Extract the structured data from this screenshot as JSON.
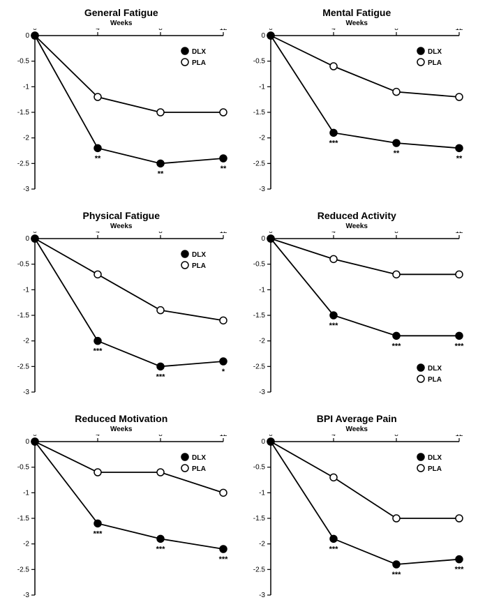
{
  "global": {
    "xaxis_title": "Weeks",
    "x_values": [
      0,
      4,
      8,
      12
    ],
    "ylim": [
      -3,
      0
    ],
    "ytick_step": 0.5,
    "series_labels": {
      "dlx": "DLX",
      "pla": "PLA"
    },
    "colors": {
      "dlx_fill": "#000000",
      "pla_fill": "#ffffff",
      "line": "#000000",
      "axis": "#000000",
      "text": "#000000",
      "background": "#ffffff"
    },
    "title_fontsize": 14,
    "subtitle_fontsize": 10,
    "axis_fontsize": 10,
    "legend_fontsize": 10,
    "marker_radius": 5,
    "line_width": 1.8
  },
  "panels": [
    {
      "title": "General Fatigue",
      "dlx": [
        0,
        -2.2,
        -2.5,
        -2.4
      ],
      "pla": [
        0,
        -1.2,
        -1.5,
        -1.5
      ],
      "sig": [
        "",
        "**",
        "**",
        "**"
      ],
      "legend_pos": "upper-right"
    },
    {
      "title": "Mental Fatigue",
      "dlx": [
        0,
        -1.9,
        -2.1,
        -2.2
      ],
      "pla": [
        0,
        -0.6,
        -1.1,
        -1.2
      ],
      "sig": [
        "",
        "***",
        "**",
        "**"
      ],
      "legend_pos": "upper-right"
    },
    {
      "title": "Physical Fatigue",
      "dlx": [
        0,
        -2.0,
        -2.5,
        -2.4
      ],
      "pla": [
        0,
        -0.7,
        -1.4,
        -1.6
      ],
      "sig": [
        "",
        "***",
        "***",
        "*"
      ],
      "legend_pos": "upper-right"
    },
    {
      "title": "Reduced Activity",
      "dlx": [
        0,
        -1.5,
        -1.9,
        -1.9
      ],
      "pla": [
        0,
        -0.4,
        -0.7,
        -0.7
      ],
      "sig": [
        "",
        "***",
        "***",
        "***"
      ],
      "legend_pos": "lower-right"
    },
    {
      "title": "Reduced Motivation",
      "dlx": [
        0,
        -1.6,
        -1.9,
        -2.1
      ],
      "pla": [
        0,
        -0.6,
        -0.6,
        -1.0
      ],
      "sig": [
        "",
        "***",
        "***",
        "***"
      ],
      "legend_pos": "upper-right"
    },
    {
      "title": "BPI Average Pain",
      "dlx": [
        0,
        -1.9,
        -2.4,
        -2.3
      ],
      "pla": [
        0,
        -0.7,
        -1.5,
        -1.5
      ],
      "sig": [
        "",
        "***",
        "***",
        "***"
      ],
      "legend_pos": "upper-right"
    }
  ]
}
